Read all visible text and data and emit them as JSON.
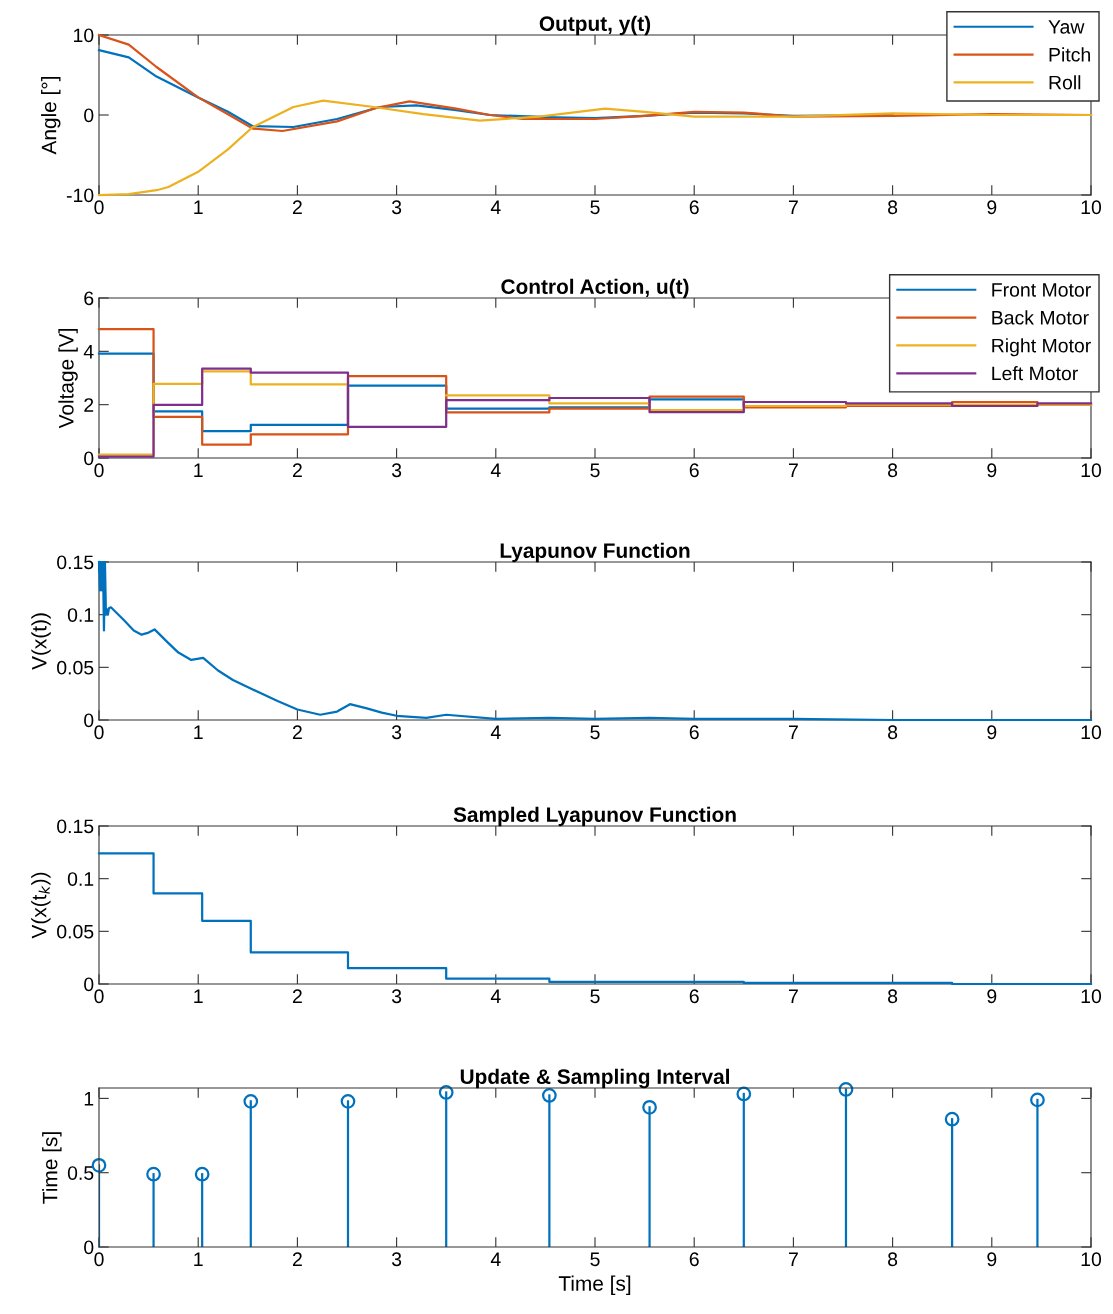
{
  "chart_data": [
    {
      "type": "line",
      "title": "Output, y(t)",
      "ylabel": "Angle [°]",
      "xlim": [
        0,
        10
      ],
      "xticks": [
        0,
        1,
        2,
        3,
        4,
        5,
        6,
        7,
        8,
        9,
        10
      ],
      "ylim": [
        -10,
        10
      ],
      "yticks": [
        -10,
        0,
        10
      ],
      "legend": "top right",
      "grid": false,
      "series": [
        {
          "name": "Yaw",
          "color": "#0072bd",
          "x": [
            0,
            0.3,
            0.58,
            1.0,
            1.3,
            1.55,
            1.96,
            2.4,
            2.83,
            3.2,
            3.6,
            3.94,
            4.6,
            5.0,
            5.5,
            6.0,
            6.5,
            7.0,
            8.0
          ],
          "values": [
            8.1,
            7.2,
            4.8,
            2.2,
            0.4,
            -1.4,
            -1.5,
            -0.5,
            1.0,
            1.2,
            0.6,
            0,
            -0.3,
            -0.4,
            -0.1,
            0.3,
            0.2,
            -0.1,
            0
          ]
        },
        {
          "name": "Pitch",
          "color": "#d95319",
          "x": [
            0,
            0.3,
            0.58,
            1.0,
            1.3,
            1.55,
            1.85,
            2.4,
            2.8,
            3.13,
            3.6,
            3.94,
            4.27,
            5.0,
            5.5,
            6.0,
            6.5,
            7.0,
            8.0,
            9.0,
            10
          ],
          "values": [
            10,
            8.8,
            6.0,
            2.2,
            0.1,
            -1.7,
            -2.0,
            -0.8,
            0.9,
            1.7,
            0.8,
            0,
            -0.5,
            -0.5,
            -0.1,
            0.4,
            0.3,
            -0.2,
            -0.1,
            0.1,
            0
          ]
        },
        {
          "name": "Roll",
          "color": "#edb120",
          "x": [
            0,
            0.3,
            0.58,
            0.7,
            1.0,
            1.3,
            1.55,
            1.96,
            2.26,
            2.77,
            3.27,
            3.84,
            4.44,
            5.1,
            5.5,
            6.0,
            7.0,
            8.0,
            9.0,
            10
          ],
          "values": [
            -10,
            -9.9,
            -9.4,
            -9.0,
            -7.1,
            -4.3,
            -1.5,
            1.0,
            1.8,
            1.0,
            0.1,
            -0.7,
            -0.2,
            0.8,
            0.4,
            -0.2,
            -0.2,
            0.2,
            0,
            0
          ]
        }
      ]
    },
    {
      "type": "step",
      "title": "Control Action, u(t)",
      "ylabel": "Voltage [V]",
      "xlim": [
        0,
        10
      ],
      "xticks": [
        0,
        1,
        2,
        3,
        4,
        5,
        6,
        7,
        8,
        9,
        10
      ],
      "ylim": [
        0,
        6
      ],
      "yticks": [
        0,
        2,
        4,
        6
      ],
      "legend": "top right",
      "grid": false,
      "x": [
        0,
        0.55,
        1.04,
        1.53,
        2.51,
        3.5,
        4.54,
        5.55,
        6.5,
        7.53,
        8.6,
        9.46,
        10
      ],
      "series": [
        {
          "name": "Front Motor",
          "color": "#0072bd",
          "x": [
            0,
            0.55,
            1.04,
            1.53,
            2.51,
            3.5,
            4.54,
            5.55,
            6.5,
            7.53,
            8.6
          ],
          "values": [
            3.91,
            1.75,
            1.01,
            1.24,
            2.71,
            1.85,
            1.9,
            2.2,
            1.95,
            2.0,
            2.0
          ]
        },
        {
          "name": "Back Motor",
          "color": "#d95319",
          "values": [
            4.83,
            1.54,
            0.5,
            0.89,
            3.07,
            1.71,
            1.85,
            2.3,
            1.9,
            1.95,
            2.1,
            2.0,
            2.0
          ]
        },
        {
          "name": "Right Motor",
          "color": "#edb120",
          "values": [
            0.13,
            2.78,
            3.25,
            2.76,
            null,
            2.35,
            2.05,
            1.8,
            1.95,
            2.0,
            2.0,
            2.0,
            2.0
          ]
        },
        {
          "name": "Left Motor",
          "color": "#7e2f8e",
          "values": [
            0.05,
            1.99,
            3.35,
            3.2,
            1.17,
            2.17,
            2.25,
            1.72,
            2.1,
            2.05,
            1.95,
            2.05,
            2.05
          ]
        }
      ]
    },
    {
      "type": "line",
      "title": "Lyapunov Function",
      "ylabel": "V(x(t))",
      "xlim": [
        0,
        10
      ],
      "xticks": [
        0,
        1,
        2,
        3,
        4,
        5,
        6,
        7,
        8,
        9,
        10
      ],
      "ylim": [
        0,
        0.15
      ],
      "yticks": [
        0,
        0.05,
        0.1,
        0.15
      ],
      "grid": false,
      "series": [
        {
          "color": "#0072bd",
          "x": [
            0,
            0.01,
            0.02,
            0.03,
            0.04,
            0.05,
            0.06,
            0.07,
            0.08,
            0.09,
            0.1,
            0.12,
            0.25,
            0.35,
            0.43,
            0.5,
            0.56,
            0.7,
            0.8,
            0.93,
            1.05,
            1.2,
            1.35,
            1.55,
            1.8,
            2.0,
            2.23,
            2.4,
            2.53,
            2.7,
            2.85,
            3.0,
            3.3,
            3.5,
            4.0,
            4.54,
            5.0,
            5.55,
            6.0,
            6.5,
            7,
            8,
            9,
            10
          ],
          "values": [
            0.15,
            0.123,
            0.15,
            0.123,
            0.15,
            0.085,
            0.15,
            0.1,
            0.105,
            0.1,
            0.106,
            0.107,
            0.095,
            0.085,
            0.081,
            0.083,
            0.086,
            0.073,
            0.064,
            0.057,
            0.059,
            0.047,
            0.038,
            0.029,
            0.018,
            0.01,
            0.005,
            0.008,
            0.015,
            0.011,
            0.007,
            0.004,
            0.002,
            0.005,
            0.001,
            0.002,
            0.001,
            0.002,
            0.001,
            0.001,
            0.001,
            0,
            0,
            0
          ]
        }
      ]
    },
    {
      "type": "step",
      "title": "Sampled Lyapunov Function",
      "ylabel": "V(x(t$_{k}$))",
      "xlim": [
        0,
        10
      ],
      "xticks": [
        0,
        1,
        2,
        3,
        4,
        5,
        6,
        7,
        8,
        9,
        10
      ],
      "ylim": [
        0,
        0.15
      ],
      "yticks": [
        0,
        0.05,
        0.1,
        0.15
      ],
      "grid": false,
      "x": [
        0,
        0.55,
        1.04,
        1.53,
        2.51,
        3.5,
        4.54,
        5.55,
        6.5,
        7.53,
        8.6,
        9.46,
        10
      ],
      "series": [
        {
          "color": "#0072bd",
          "values": [
            0.124,
            0.086,
            0.06,
            0.03,
            0.015,
            0.005,
            0.002,
            0.002,
            0.001,
            0.001,
            0,
            0,
            0
          ]
        }
      ]
    },
    {
      "type": "lollipop",
      "title": "Update & Sampling Interval",
      "ylabel": "Time [s]",
      "xlabel": "Time [s]",
      "xlim": [
        0,
        10
      ],
      "xticks": [
        0,
        1,
        2,
        3,
        4,
        5,
        6,
        7,
        8,
        9,
        10
      ],
      "ylim": [
        0,
        1.07
      ],
      "yticks": [
        0,
        0.5,
        1
      ],
      "marker": "circle",
      "grid": false,
      "x": [
        0,
        0.55,
        1.04,
        1.53,
        2.51,
        3.5,
        4.54,
        5.55,
        6.5,
        7.53,
        8.6,
        9.46
      ],
      "series": [
        {
          "color": "#0072bd",
          "values": [
            0.55,
            0.49,
            0.49,
            0.98,
            0.98,
            1.04,
            1.02,
            0.94,
            1.03,
            1.06,
            0.86,
            0.99
          ]
        }
      ]
    }
  ]
}
